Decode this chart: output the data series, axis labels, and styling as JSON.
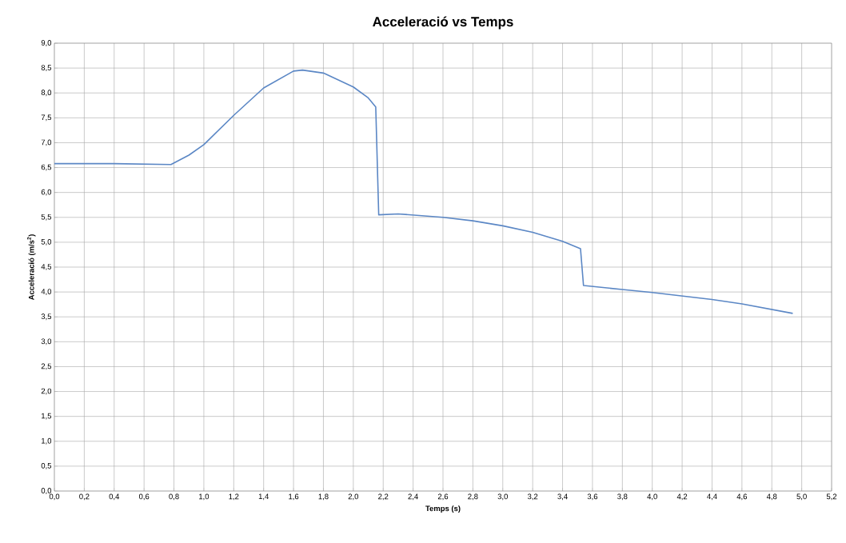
{
  "chart_data": {
    "type": "line",
    "title": "Acceleració vs Temps",
    "xlabel": "Temps (s)",
    "ylabel": "Acceleració (m/s$^{2}$)",
    "x": [
      0,
      0.4,
      0.78,
      0.9,
      1.0,
      1.2,
      1.4,
      1.6,
      1.66,
      1.8,
      2.0,
      2.1,
      2.15,
      2.17,
      2.3,
      2.6,
      2.8,
      3.0,
      3.2,
      3.4,
      3.52,
      3.54,
      3.8,
      4.0,
      4.4,
      4.6,
      4.94
    ],
    "series": [
      {
        "color": "#5b87c5",
        "values": [
          6.58,
          6.58,
          6.56,
          6.75,
          6.96,
          7.55,
          8.1,
          8.44,
          8.46,
          8.4,
          8.12,
          7.9,
          7.72,
          5.55,
          5.57,
          5.5,
          5.43,
          5.33,
          5.2,
          5.02,
          4.87,
          4.13,
          4.05,
          3.99,
          3.85,
          3.76,
          3.57
        ]
      }
    ],
    "xlim": [
      0,
      5.2
    ],
    "ylim": [
      0,
      9
    ],
    "xticks": [
      {
        "value": 0,
        "label": "0,0"
      },
      {
        "value": 0.2,
        "label": "0,2"
      },
      {
        "value": 0.4,
        "label": "0,4"
      },
      {
        "value": 0.6,
        "label": "0,6"
      },
      {
        "value": 0.8,
        "label": "0,8"
      },
      {
        "value": 1.0,
        "label": "1,0"
      },
      {
        "value": 1.2,
        "label": "1,2"
      },
      {
        "value": 1.4,
        "label": "1,4"
      },
      {
        "value": 1.6,
        "label": "1,6"
      },
      {
        "value": 1.8,
        "label": "1,8"
      },
      {
        "value": 2.0,
        "label": "2,0"
      },
      {
        "value": 2.2,
        "label": "2,2"
      },
      {
        "value": 2.4,
        "label": "2,4"
      },
      {
        "value": 2.6,
        "label": "2,6"
      },
      {
        "value": 2.8,
        "label": "2,8"
      },
      {
        "value": 3.0,
        "label": "3,0"
      },
      {
        "value": 3.2,
        "label": "3,2"
      },
      {
        "value": 3.4,
        "label": "3,4"
      },
      {
        "value": 3.6,
        "label": "3,6"
      },
      {
        "value": 3.8,
        "label": "3,8"
      },
      {
        "value": 4.0,
        "label": "4,0"
      },
      {
        "value": 4.2,
        "label": "4,2"
      },
      {
        "value": 4.4,
        "label": "4,4"
      },
      {
        "value": 4.6,
        "label": "4,6"
      },
      {
        "value": 4.8,
        "label": "4,8"
      },
      {
        "value": 5.0,
        "label": "5,0"
      },
      {
        "value": 5.2,
        "label": "5,2"
      }
    ],
    "yticks": [
      {
        "value": 0,
        "label": "0,0"
      },
      {
        "value": 0.5,
        "label": "0,5"
      },
      {
        "value": 1.0,
        "label": "1,0"
      },
      {
        "value": 1.5,
        "label": "1,5"
      },
      {
        "value": 2.0,
        "label": "2,0"
      },
      {
        "value": 2.5,
        "label": "2,5"
      },
      {
        "value": 3.0,
        "label": "3,0"
      },
      {
        "value": 3.5,
        "label": "3,5"
      },
      {
        "value": 4.0,
        "label": "4,0"
      },
      {
        "value": 4.5,
        "label": "4,5"
      },
      {
        "value": 5.0,
        "label": "5,0"
      },
      {
        "value": 5.5,
        "label": "5,5"
      },
      {
        "value": 6.0,
        "label": "6,0"
      },
      {
        "value": 6.5,
        "label": "6,5"
      },
      {
        "value": 7.0,
        "label": "7,0"
      },
      {
        "value": 7.5,
        "label": "7,5"
      },
      {
        "value": 8.0,
        "label": "8,0"
      },
      {
        "value": 8.5,
        "label": "8,5"
      },
      {
        "value": 9.0,
        "label": "9,0"
      }
    ],
    "grid": true,
    "marker": "none",
    "line_style": "solid"
  }
}
